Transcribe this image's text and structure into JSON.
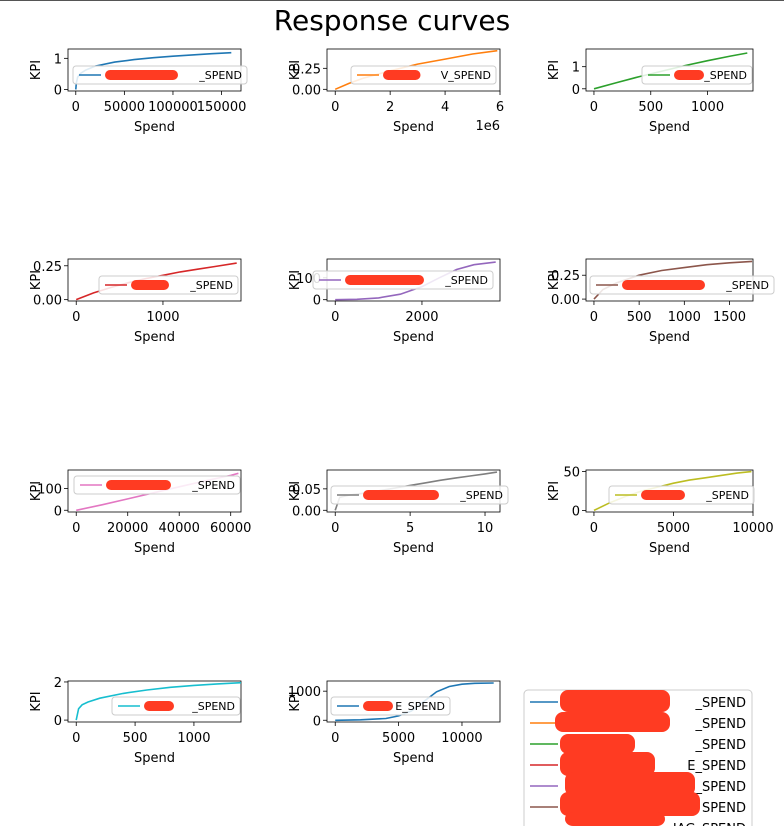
{
  "figure": {
    "title": "Response curves",
    "redaction_color": "#ff3b22"
  },
  "chart_data": [
    {
      "type": "line",
      "xlabel": "Spend",
      "ylabel": "KPI",
      "xlim": [
        -8000,
        170000
      ],
      "ylim": [
        -0.05,
        1.3
      ],
      "xticks": [
        0,
        50000,
        100000,
        150000
      ],
      "xtick_labels": [
        "0",
        "50000",
        "100000",
        "150000"
      ],
      "yticks": [
        0,
        1
      ],
      "ytick_labels": [
        "0",
        "1"
      ],
      "x": [
        0,
        500,
        2000,
        5000,
        10000,
        20000,
        40000,
        60000,
        80000,
        100000,
        120000,
        140000,
        160000
      ],
      "y": [
        0,
        0.2,
        0.4,
        0.52,
        0.62,
        0.75,
        0.88,
        0.96,
        1.02,
        1.07,
        1.11,
        1.15,
        1.18
      ],
      "color": "#1f77b4",
      "legend": {
        "label": "_SPEND",
        "redacted": true
      }
    },
    {
      "type": "line",
      "xlabel": "Spend",
      "ylabel": "KPI",
      "xlim": [
        -300000,
        6000000
      ],
      "ylim": [
        -0.02,
        0.48
      ],
      "xticks": [
        0,
        2000000,
        4000000,
        6000000
      ],
      "xtick_labels": [
        "0",
        "2",
        "4",
        "6"
      ],
      "x_offset_text": "1e6",
      "yticks": [
        0,
        0.25
      ],
      "ytick_labels": [
        "0.00",
        "0.25"
      ],
      "x": [
        0,
        500000,
        1000000,
        2000000,
        3000000,
        4000000,
        5000000,
        5900000
      ],
      "y": [
        0,
        0.07,
        0.13,
        0.22,
        0.3,
        0.36,
        0.42,
        0.46
      ],
      "color": "#ff7f0e",
      "legend": {
        "label": "V_SPEND",
        "redacted": true
      }
    },
    {
      "type": "line",
      "xlabel": "Spend",
      "ylabel": "KPI",
      "xlim": [
        -70,
        1400
      ],
      "ylim": [
        -0.1,
        1.8
      ],
      "xticks": [
        0,
        500,
        1000
      ],
      "xtick_labels": [
        "0",
        "500",
        "1000"
      ],
      "yticks": [
        0,
        1
      ],
      "ytick_labels": [
        "0",
        "1"
      ],
      "x": [
        0,
        200,
        400,
        600,
        800,
        1000,
        1200,
        1350
      ],
      "y": [
        0,
        0.28,
        0.55,
        0.8,
        1.05,
        1.27,
        1.48,
        1.62
      ],
      "color": "#2ca02c",
      "legend": {
        "label": "_SPEND",
        "redacted": true
      }
    },
    {
      "type": "line",
      "xlabel": "Spend",
      "ylabel": "KPI",
      "xlim": [
        -95,
        1900
      ],
      "ylim": [
        -0.01,
        0.3
      ],
      "xticks": [
        0,
        1000
      ],
      "xtick_labels": [
        "0",
        "1000"
      ],
      "yticks": [
        0,
        0.25
      ],
      "ytick_labels": [
        "0.00",
        "0.25"
      ],
      "x": [
        0,
        200,
        400,
        600,
        800,
        1000,
        1200,
        1400,
        1600,
        1850
      ],
      "y": [
        0,
        0.05,
        0.09,
        0.125,
        0.155,
        0.18,
        0.205,
        0.225,
        0.245,
        0.27
      ],
      "color": "#d62728",
      "legend": {
        "label": "_SPEND",
        "redacted": true
      }
    },
    {
      "type": "line",
      "xlabel": "Spend",
      "ylabel": "KPI",
      "xlim": [
        -190,
        3800
      ],
      "ylim": [
        -6,
        186
      ],
      "xticks": [
        0,
        2000
      ],
      "xtick_labels": [
        "0",
        "2000"
      ],
      "yticks": [
        0,
        100
      ],
      "ytick_labels": [
        "0",
        "100"
      ],
      "x": [
        0,
        500,
        1000,
        1500,
        2000,
        2400,
        2800,
        3200,
        3700
      ],
      "y": [
        0,
        2,
        8,
        25,
        60,
        100,
        138,
        160,
        172
      ],
      "color": "#9467bd",
      "legend": {
        "label": "_SPEND",
        "redacted": true
      }
    },
    {
      "type": "line",
      "xlabel": "Spend",
      "ylabel": "KPI",
      "xlim": [
        -88,
        1760
      ],
      "ylim": [
        -0.02,
        0.42
      ],
      "xticks": [
        0,
        500,
        1000,
        1500
      ],
      "xtick_labels": [
        "0",
        "500",
        "1000",
        "1500"
      ],
      "yticks": [
        0,
        0.25
      ],
      "ytick_labels": [
        "0.00",
        "0.25"
      ],
      "x": [
        0,
        100,
        250,
        500,
        750,
        1000,
        1250,
        1500,
        1750
      ],
      "y": [
        0,
        0.1,
        0.17,
        0.25,
        0.3,
        0.33,
        0.36,
        0.38,
        0.395
      ],
      "color": "#8c564b",
      "legend": {
        "label": "_SPEND",
        "redacted": true
      }
    },
    {
      "type": "line",
      "xlabel": "Spend",
      "ylabel": "KPI",
      "xlim": [
        -3200,
        64000
      ],
      "ylim": [
        -8,
        185
      ],
      "xticks": [
        0,
        20000,
        40000,
        60000
      ],
      "xtick_labels": [
        "0",
        "20000",
        "40000",
        "60000"
      ],
      "yticks": [
        0,
        100
      ],
      "ytick_labels": [
        "0",
        "100"
      ],
      "x": [
        0,
        10000,
        20000,
        30000,
        40000,
        50000,
        60000,
        63000
      ],
      "y": [
        0,
        25,
        52,
        80,
        108,
        135,
        160,
        170
      ],
      "color": "#e377c2",
      "legend": {
        "label": "_SPEND",
        "redacted": true
      }
    },
    {
      "type": "line",
      "xlabel": "Spend",
      "ylabel": "KPI",
      "xlim": [
        -0.55,
        11
      ],
      "ylim": [
        -0.004,
        0.094
      ],
      "xticks": [
        0,
        5,
        10
      ],
      "xtick_labels": [
        "0",
        "5",
        "10"
      ],
      "yticks": [
        0,
        0.05
      ],
      "ytick_labels": [
        "0.00",
        "0.05"
      ],
      "x": [
        0,
        0.3,
        1,
        2,
        3,
        4,
        5,
        6,
        7,
        8,
        9,
        10,
        10.8
      ],
      "y": [
        0,
        0.03,
        0.036,
        0.04,
        0.046,
        0.052,
        0.058,
        0.064,
        0.07,
        0.075,
        0.08,
        0.085,
        0.089
      ],
      "color": "#7f7f7f",
      "legend": {
        "label": "_SPEND",
        "redacted": true
      }
    },
    {
      "type": "line",
      "xlabel": "Spend",
      "ylabel": "KPI",
      "xlim": [
        -500,
        10000
      ],
      "ylim": [
        -2,
        52
      ],
      "xticks": [
        0,
        5000,
        10000
      ],
      "xtick_labels": [
        "0",
        "5000",
        "10000"
      ],
      "yticks": [
        0,
        50
      ],
      "ytick_labels": [
        "0",
        "50"
      ],
      "x": [
        0,
        1000,
        2000,
        3000,
        4000,
        5000,
        6000,
        7000,
        8000,
        9000,
        9900
      ],
      "y": [
        0,
        10,
        18,
        25,
        30,
        35,
        39,
        42,
        45,
        48,
        50
      ],
      "color": "#bcbd22",
      "legend": {
        "label": "_SPEND",
        "redacted": true
      }
    },
    {
      "type": "line",
      "xlabel": "Spend",
      "ylabel": "KPI",
      "xlim": [
        -70,
        1400
      ],
      "ylim": [
        -0.1,
        2.05
      ],
      "xticks": [
        0,
        500,
        1000
      ],
      "xtick_labels": [
        "0",
        "500",
        "1000"
      ],
      "yticks": [
        0,
        2
      ],
      "ytick_labels": [
        "0",
        "2"
      ],
      "x": [
        0,
        20,
        50,
        100,
        200,
        400,
        600,
        800,
        1000,
        1200,
        1400
      ],
      "y": [
        0,
        0.6,
        0.8,
        0.95,
        1.15,
        1.4,
        1.58,
        1.72,
        1.82,
        1.9,
        1.96
      ],
      "color": "#17becf",
      "legend": {
        "label": "_SPEND",
        "redacted": true
      }
    },
    {
      "type": "line",
      "xlabel": "Spend",
      "ylabel": "KPI",
      "xlim": [
        -650,
        13000
      ],
      "ylim": [
        -60,
        1350
      ],
      "xticks": [
        0,
        5000,
        10000
      ],
      "xtick_labels": [
        "0",
        "5000",
        "10000"
      ],
      "yticks": [
        0,
        1000
      ],
      "ytick_labels": [
        "0",
        "1000"
      ],
      "x": [
        0,
        2000,
        4000,
        5000,
        6000,
        7000,
        8000,
        9000,
        10000,
        11000,
        12500
      ],
      "y": [
        0,
        15,
        60,
        150,
        320,
        650,
        980,
        1160,
        1240,
        1270,
        1280
      ],
      "color": "#1f77b4",
      "legend": {
        "label": "E_SPEND",
        "redacted": true
      }
    }
  ],
  "shared_legend": {
    "entries": [
      {
        "label": "_SPEND",
        "color": "#1f77b4",
        "redacted": true
      },
      {
        "label": "_SPEND",
        "color": "#ff7f0e",
        "redacted": true
      },
      {
        "label": "_SPEND",
        "color": "#2ca02c",
        "redacted": true
      },
      {
        "label": "E_SPEND",
        "color": "#d62728",
        "redacted": true
      },
      {
        "label": "_SPEND",
        "color": "#9467bd",
        "redacted": true
      },
      {
        "label": "SPEND",
        "color": "#8c564b",
        "redacted": true
      },
      {
        "label": "IAG_SPEND",
        "color": "#e377c2",
        "redacted": true
      }
    ]
  }
}
